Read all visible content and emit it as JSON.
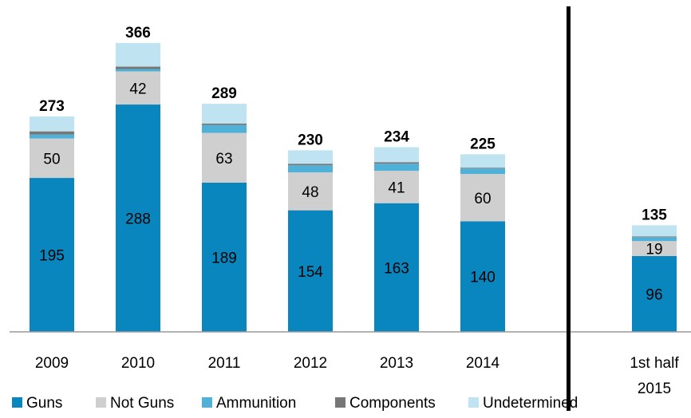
{
  "chart_data": {
    "type": "bar",
    "stacked": true,
    "categories": [
      "2009",
      "2010",
      "2011",
      "2012",
      "2013",
      "2014",
      "1st half 2015"
    ],
    "category_lines": [
      [
        "2009"
      ],
      [
        "2010"
      ],
      [
        "2011"
      ],
      [
        "2012"
      ],
      [
        "2013"
      ],
      [
        "2014"
      ],
      [
        "1st half",
        "2015"
      ]
    ],
    "series": [
      {
        "name": "Guns",
        "color": "#0a86be",
        "values": [
          195,
          288,
          189,
          154,
          163,
          140,
          96
        ],
        "labeled": true
      },
      {
        "name": "Not Guns",
        "color": "#cfcfcf",
        "values": [
          50,
          42,
          63,
          48,
          41,
          60,
          19
        ],
        "labeled": true
      },
      {
        "name": "Ammunition",
        "color": "#4fb0d8",
        "values": [
          5,
          3,
          10,
          9,
          9,
          7,
          5
        ],
        "labeled": false
      },
      {
        "name": "Components",
        "color": "#777777",
        "values": [
          4,
          3,
          2,
          2,
          2,
          1,
          1
        ],
        "labeled": false
      },
      {
        "name": "Undetermined",
        "color": "#bfe3f1",
        "values": [
          19,
          30,
          25,
          17,
          19,
          17,
          14
        ],
        "labeled": false
      }
    ],
    "totals": [
      "273",
      "366",
      "289",
      "230",
      "234",
      "225",
      "135"
    ],
    "ylim": [
      0,
      380
    ],
    "grid": false,
    "legend_position": "bottom",
    "separator_before_category": 6,
    "title": "",
    "xlabel": "",
    "ylabel": ""
  }
}
